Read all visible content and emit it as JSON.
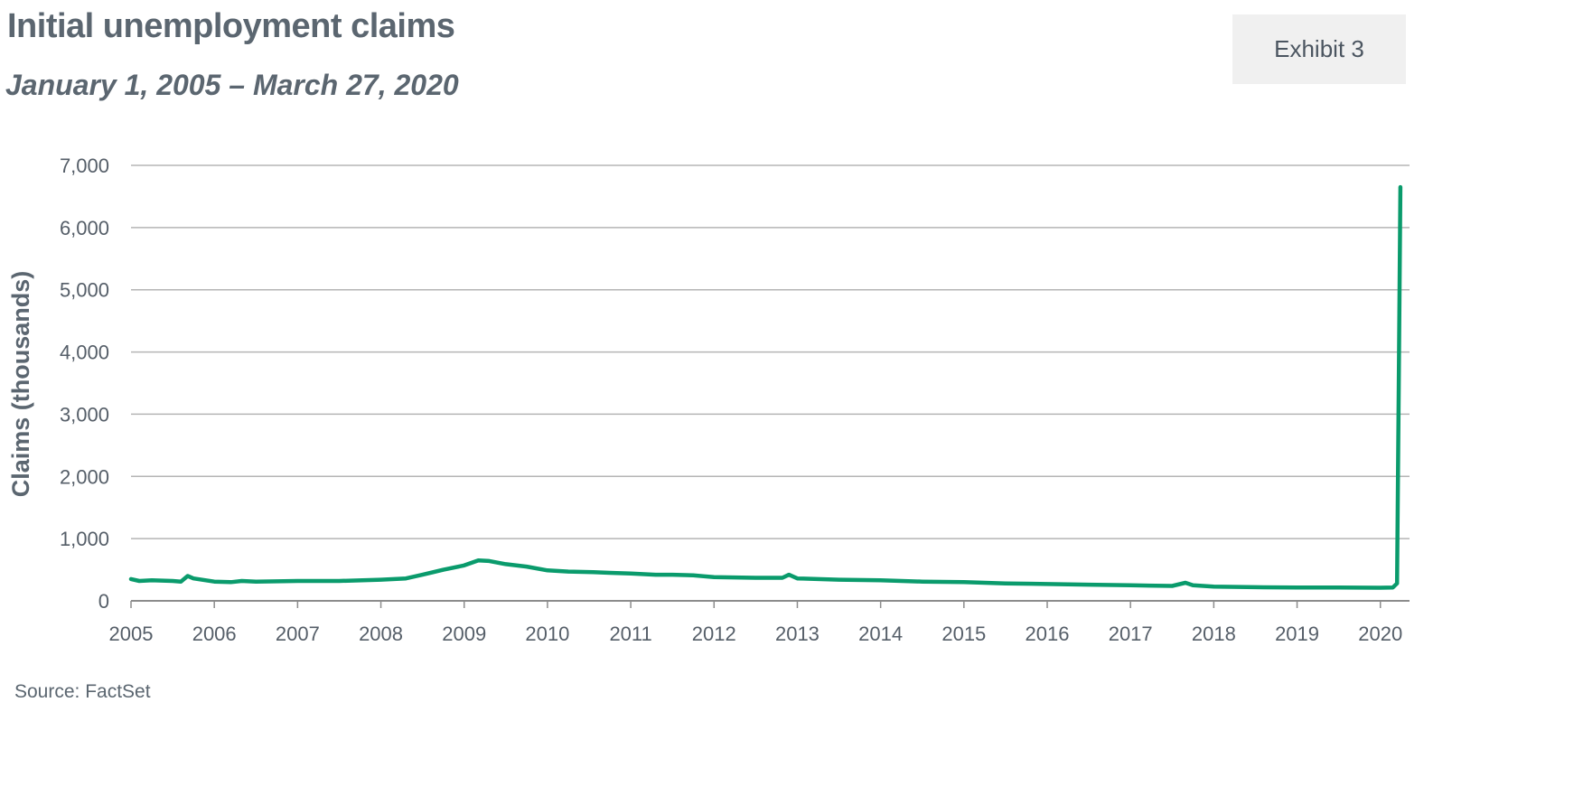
{
  "header": {
    "title": "Initial unemployment claims",
    "subtitle": "January 1, 2005 – March 27, 2020",
    "exhibit": "Exhibit 3"
  },
  "footer": {
    "source": "Source: FactSet"
  },
  "colors": {
    "line": "#0a9b6c",
    "grid": "#b5b5b5",
    "axis": "#8c8c8c",
    "text": "#5b6670"
  },
  "chart_data": {
    "type": "line",
    "title": "Initial unemployment claims",
    "subtitle": "January 1, 2005 – March 27, 2020",
    "xlabel": "",
    "ylabel": "Claims (thousands)",
    "xlim": [
      2005,
      2020.35
    ],
    "ylim": [
      0,
      7000
    ],
    "grid": true,
    "y_ticks": [
      0,
      1000,
      2000,
      3000,
      4000,
      5000,
      6000,
      7000
    ],
    "y_tick_labels": [
      "0",
      "1,000",
      "2,000",
      "3,000",
      "4,000",
      "5,000",
      "6,000",
      "7,000"
    ],
    "x_ticks": [
      2005,
      2006,
      2007,
      2008,
      2009,
      2010,
      2011,
      2012,
      2013,
      2014,
      2015,
      2016,
      2017,
      2018,
      2019,
      2020
    ],
    "x_tick_labels": [
      "2005",
      "2006",
      "2007",
      "2008",
      "2009",
      "2010",
      "2011",
      "2012",
      "2013",
      "2014",
      "2015",
      "2016",
      "2017",
      "2018",
      "2019",
      "2020"
    ],
    "series": [
      {
        "name": "",
        "color": "#0a9b6c",
        "x": [
          2005.0,
          2005.1,
          2005.25,
          2005.5,
          2005.6,
          2005.68,
          2005.75,
          2005.9,
          2006.0,
          2006.2,
          2006.33,
          2006.5,
          2007.0,
          2007.5,
          2008.0,
          2008.3,
          2008.5,
          2008.75,
          2009.0,
          2009.17,
          2009.3,
          2009.5,
          2009.75,
          2010.0,
          2010.25,
          2010.55,
          2010.75,
          2011.0,
          2011.3,
          2011.5,
          2011.75,
          2012.0,
          2012.5,
          2012.82,
          2012.9,
          2013.0,
          2013.5,
          2014.0,
          2014.5,
          2015.0,
          2015.5,
          2016.0,
          2016.5,
          2017.0,
          2017.5,
          2017.66,
          2017.75,
          2018.0,
          2018.5,
          2019.0,
          2019.5,
          2020.0,
          2020.15,
          2020.2,
          2020.22,
          2020.24
        ],
        "y": [
          350,
          320,
          330,
          320,
          310,
          400,
          360,
          330,
          310,
          300,
          320,
          310,
          320,
          320,
          340,
          360,
          420,
          500,
          570,
          650,
          640,
          590,
          550,
          490,
          470,
          460,
          450,
          440,
          420,
          420,
          410,
          380,
          370,
          370,
          420,
          360,
          340,
          330,
          310,
          300,
          280,
          270,
          260,
          250,
          240,
          290,
          250,
          230,
          220,
          215,
          215,
          210,
          215,
          280,
          3300,
          6650
        ]
      }
    ]
  }
}
